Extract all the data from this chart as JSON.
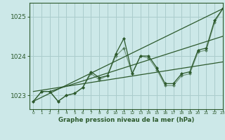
{
  "background_color": "#cce8e8",
  "grid_color": "#aacccc",
  "line_color": "#2d5a2d",
  "marker_color": "#2d5a2d",
  "title": "Graphe pression niveau de la mer (hPa)",
  "xlim": [
    -0.5,
    23
  ],
  "ylim": [
    1022.65,
    1025.35
  ],
  "yticks": [
    1023,
    1024,
    1025
  ],
  "xtick_labels": [
    "0",
    "1",
    "2",
    "3",
    "4",
    "5",
    "6",
    "7",
    "8",
    "9",
    "10",
    "11",
    "12",
    "13",
    "14",
    "15",
    "16",
    "17",
    "18",
    "19",
    "20",
    "21",
    "22",
    "23"
  ],
  "series1_x": [
    0,
    1,
    2,
    3,
    4,
    5,
    6,
    7,
    8,
    9,
    10,
    11,
    12,
    13,
    14,
    15,
    16,
    17,
    18,
    19,
    20,
    21,
    22,
    23
  ],
  "series1_y": [
    1022.85,
    1023.1,
    1023.1,
    1022.85,
    1023.0,
    1023.05,
    1023.2,
    1023.6,
    1023.45,
    1023.5,
    1024.05,
    1024.45,
    1023.55,
    1024.0,
    1024.0,
    1023.7,
    1023.3,
    1023.3,
    1023.55,
    1023.6,
    1024.15,
    1024.2,
    1024.9,
    1025.2
  ],
  "series2_x": [
    0,
    1,
    2,
    3,
    4,
    5,
    6,
    7,
    8,
    9,
    10,
    11,
    12,
    13,
    14,
    15,
    16,
    17,
    18,
    19,
    20,
    21,
    22,
    23
  ],
  "series2_y": [
    1022.85,
    1023.1,
    1023.1,
    1022.85,
    1023.0,
    1023.05,
    1023.2,
    1023.55,
    1023.4,
    1023.5,
    1024.0,
    1024.2,
    1023.55,
    1024.0,
    1023.95,
    1023.65,
    1023.25,
    1023.25,
    1023.5,
    1023.55,
    1024.1,
    1024.15,
    1024.85,
    1025.2
  ],
  "trend1_x": [
    0,
    23
  ],
  "trend1_y": [
    1022.85,
    1025.2
  ],
  "trend2_x": [
    0,
    23
  ],
  "trend2_y": [
    1023.1,
    1023.85
  ],
  "trend3_x": [
    2,
    23
  ],
  "trend3_y": [
    1023.1,
    1024.5
  ]
}
